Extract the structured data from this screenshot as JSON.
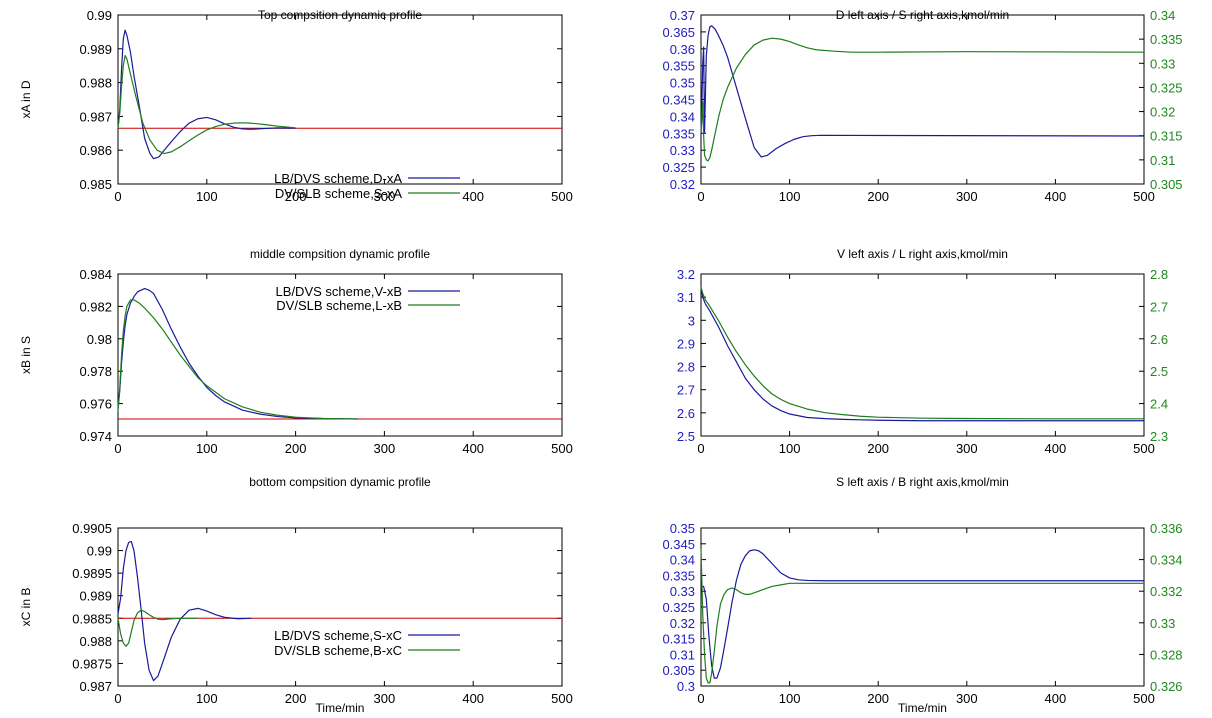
{
  "colors": {
    "blue": "#1a1a9a",
    "green": "#1e7d1e",
    "red": "#cc0000",
    "left_tick": "#2020c0",
    "right_tick": "#1e8a1e"
  },
  "chart_data": [
    {
      "type": "line",
      "title": "Top compsition dynamic profile",
      "ylabel": "xA in D",
      "xlabel": "",
      "xlim": [
        0,
        500
      ],
      "xticks": [
        "0",
        "100",
        "200",
        "300",
        "400",
        "500"
      ],
      "ylim": [
        0.985,
        0.99
      ],
      "yticks": [
        "0.985",
        "0.986",
        "0.987",
        "0.988",
        "0.989",
        "0.99"
      ],
      "setpoint": 0.98665,
      "series": [
        {
          "name": "LB/DVS scheme,D-xA",
          "color": "blue",
          "x": [
            0,
            2,
            4,
            6,
            8,
            10,
            14,
            18,
            24,
            30,
            36,
            40,
            46,
            52,
            60,
            70,
            80,
            90,
            100,
            110,
            120,
            130,
            140,
            150,
            165,
            180,
            200
          ],
          "y": [
            0.98665,
            0.9872,
            0.9884,
            0.9893,
            0.98955,
            0.9894,
            0.9889,
            0.9882,
            0.9873,
            0.98635,
            0.9859,
            0.98575,
            0.9858,
            0.986,
            0.98625,
            0.98655,
            0.9868,
            0.98693,
            0.98697,
            0.9869,
            0.98678,
            0.98668,
            0.98663,
            0.98662,
            0.98664,
            0.98666,
            0.98665
          ]
        },
        {
          "name": "DV/SLB scheme,S-xA",
          "color": "green",
          "x": [
            0,
            2,
            4,
            6,
            8,
            10,
            14,
            20,
            28,
            36,
            44,
            52,
            60,
            70,
            80,
            90,
            100,
            110,
            120,
            130,
            140,
            150,
            165,
            180,
            200
          ],
          "y": [
            0.98665,
            0.9871,
            0.9879,
            0.9885,
            0.9888,
            0.9887,
            0.98825,
            0.9876,
            0.9868,
            0.9863,
            0.986,
            0.9859,
            0.98595,
            0.9861,
            0.98628,
            0.98645,
            0.9866,
            0.9867,
            0.98677,
            0.9868,
            0.98681,
            0.9868,
            0.98676,
            0.98671,
            0.98666
          ]
        }
      ],
      "legend_position": "center"
    },
    {
      "type": "line",
      "title": "middle compsition dynamic profile",
      "ylabel": "xB in S",
      "xlabel": "",
      "xlim": [
        0,
        500
      ],
      "xticks": [
        "0",
        "100",
        "200",
        "300",
        "400",
        "500"
      ],
      "ylim": [
        0.974,
        0.984
      ],
      "yticks": [
        "0.974",
        "0.976",
        "0.978",
        "0.98",
        "0.982",
        "0.984"
      ],
      "setpoint": 0.97505,
      "series": [
        {
          "name": "LB/DVS scheme,V-xB",
          "color": "blue",
          "x": [
            0,
            2,
            4,
            6,
            8,
            10,
            14,
            18,
            22,
            26,
            30,
            35,
            40,
            50,
            60,
            70,
            80,
            90,
            100,
            110,
            120,
            140,
            160,
            180,
            200,
            230,
            270
          ],
          "y": [
            0.9757,
            0.9768,
            0.9785,
            0.9798,
            0.9808,
            0.9815,
            0.9822,
            0.9826,
            0.9829,
            0.983,
            0.9831,
            0.983,
            0.9828,
            0.9818,
            0.9806,
            0.9795,
            0.9785,
            0.9777,
            0.977,
            0.9765,
            0.9761,
            0.9756,
            0.97535,
            0.9752,
            0.97512,
            0.97508,
            0.97505
          ]
        },
        {
          "name": "DV/SLB scheme,L-xB",
          "color": "green",
          "x": [
            0,
            2,
            4,
            6,
            8,
            10,
            14,
            18,
            24,
            30,
            40,
            50,
            60,
            70,
            80,
            90,
            100,
            110,
            120,
            140,
            160,
            180,
            200,
            230,
            270
          ],
          "y": [
            0.9755,
            0.977,
            0.979,
            0.9805,
            0.9814,
            0.982,
            0.9824,
            0.9824,
            0.9822,
            0.9819,
            0.9813,
            0.9806,
            0.9798,
            0.979,
            0.9783,
            0.9776,
            0.9771,
            0.9767,
            0.9763,
            0.9758,
            0.97547,
            0.97528,
            0.97516,
            0.97508,
            0.97505
          ]
        }
      ],
      "legend_position": "top-center"
    },
    {
      "type": "line",
      "title": "bottom compsition dynamic profile",
      "ylabel": "xC in B",
      "xlabel": "Time/min",
      "xlim": [
        0,
        500
      ],
      "xticks": [
        "0",
        "100",
        "200",
        "300",
        "400",
        "500"
      ],
      "ylim": [
        0.987,
        0.9905
      ],
      "yticks": [
        "0.987",
        "0.9875",
        "0.988",
        "0.9885",
        "0.989",
        "0.9895",
        "0.99",
        "0.9905"
      ],
      "setpoint": 0.9885,
      "series": [
        {
          "name": "LB/DVS scheme,S-xC",
          "color": "blue",
          "x": [
            0,
            3,
            6,
            9,
            12,
            15,
            18,
            22,
            26,
            30,
            35,
            40,
            45,
            50,
            60,
            70,
            80,
            90,
            100,
            110,
            120,
            135,
            150
          ],
          "y": [
            0.9886,
            0.98895,
            0.9896,
            0.99,
            0.99018,
            0.9902,
            0.99,
            0.9894,
            0.9887,
            0.98795,
            0.98735,
            0.98712,
            0.98722,
            0.9875,
            0.98808,
            0.98848,
            0.98868,
            0.98872,
            0.98866,
            0.98858,
            0.98852,
            0.98849,
            0.9885
          ]
        },
        {
          "name": "DV/SLB scheme,B-xC",
          "color": "green",
          "x": [
            0,
            3,
            6,
            9,
            12,
            15,
            18,
            22,
            26,
            30,
            35,
            40,
            45,
            50,
            60,
            70,
            80,
            90
          ],
          "y": [
            0.9885,
            0.98815,
            0.98795,
            0.98788,
            0.98795,
            0.9882,
            0.98845,
            0.98862,
            0.98868,
            0.98865,
            0.98858,
            0.98852,
            0.98848,
            0.98847,
            0.98849,
            0.9885,
            0.9885,
            0.9885
          ]
        }
      ],
      "legend_position": "bottom-center"
    },
    {
      "type": "line",
      "title": "D left axis / S right axis,kmol/min",
      "ylabel": "",
      "xlabel": "",
      "xlim": [
        0,
        500
      ],
      "xticks": [
        "0",
        "100",
        "200",
        "300",
        "400",
        "500"
      ],
      "ylim": [
        0.32,
        0.37
      ],
      "yticks": [
        "0.32",
        "0.325",
        "0.33",
        "0.335",
        "0.34",
        "0.345",
        "0.35",
        "0.355",
        "0.36",
        "0.365",
        "0.37"
      ],
      "y2lim": [
        0.305,
        0.34
      ],
      "y2ticks": [
        "0.305",
        "0.31",
        "0.315",
        "0.32",
        "0.325",
        "0.33",
        "0.335",
        "0.34"
      ],
      "series": [
        {
          "name": "D",
          "axis": "left",
          "color": "blue",
          "x": [
            0,
            1,
            2,
            3,
            4,
            6,
            8,
            10,
            12,
            16,
            20,
            25,
            30,
            40,
            50,
            60,
            68,
            75,
            85,
            95,
            105,
            115,
            125,
            135,
            500
          ],
          "y": [
            0.3345,
            0.344,
            0.356,
            0.3605,
            0.335,
            0.358,
            0.364,
            0.3665,
            0.3668,
            0.3658,
            0.3638,
            0.361,
            0.3575,
            0.3485,
            0.3395,
            0.3308,
            0.328,
            0.3285,
            0.3305,
            0.332,
            0.3332,
            0.334,
            0.3343,
            0.3344,
            0.3342
          ]
        },
        {
          "name": "S",
          "axis": "right",
          "color": "green",
          "x": [
            0,
            1,
            2,
            3,
            4,
            6,
            8,
            10,
            12,
            16,
            20,
            25,
            30,
            40,
            50,
            60,
            70,
            80,
            90,
            100,
            110,
            120,
            130,
            150,
            170,
            200,
            300,
            500
          ],
          "y": [
            0.316,
            0.318,
            0.322,
            0.315,
            0.311,
            0.31,
            0.3098,
            0.3105,
            0.312,
            0.3155,
            0.319,
            0.3225,
            0.325,
            0.329,
            0.3318,
            0.3338,
            0.3348,
            0.3352,
            0.335,
            0.3345,
            0.3338,
            0.3332,
            0.3328,
            0.3325,
            0.3323,
            0.3323,
            0.3324,
            0.3323
          ]
        }
      ]
    },
    {
      "type": "line",
      "title": "V left axis / L right axis,kmol/min",
      "ylabel": "",
      "xlabel": "",
      "xlim": [
        0,
        500
      ],
      "xticks": [
        "0",
        "100",
        "200",
        "300",
        "400",
        "500"
      ],
      "ylim": [
        2.5,
        3.2
      ],
      "yticks": [
        "2.5",
        "2.6",
        "2.7",
        "2.8",
        "2.9",
        "3",
        "3.1",
        "3.2"
      ],
      "y2lim": [
        2.3,
        2.8
      ],
      "y2ticks": [
        "2.3",
        "2.4",
        "2.5",
        "2.6",
        "2.7",
        "2.8"
      ],
      "series": [
        {
          "name": "V",
          "axis": "left",
          "color": "blue",
          "x": [
            0,
            2,
            5,
            10,
            20,
            30,
            40,
            50,
            60,
            70,
            80,
            90,
            100,
            120,
            140,
            160,
            180,
            200,
            250,
            300,
            400,
            500
          ],
          "y": [
            3.14,
            3.1,
            3.07,
            3.04,
            2.97,
            2.89,
            2.82,
            2.75,
            2.7,
            2.66,
            2.63,
            2.61,
            2.595,
            2.58,
            2.575,
            2.572,
            2.57,
            2.568,
            2.566,
            2.566,
            2.566,
            2.566
          ]
        },
        {
          "name": "L",
          "axis": "right",
          "color": "green",
          "x": [
            0,
            2,
            5,
            10,
            20,
            30,
            40,
            50,
            60,
            70,
            80,
            90,
            100,
            120,
            140,
            160,
            180,
            200,
            250,
            300,
            400,
            500
          ],
          "y": [
            2.76,
            2.74,
            2.72,
            2.7,
            2.655,
            2.605,
            2.56,
            2.52,
            2.485,
            2.455,
            2.43,
            2.413,
            2.4,
            2.383,
            2.372,
            2.366,
            2.361,
            2.358,
            2.355,
            2.354,
            2.353,
            2.353
          ]
        }
      ]
    },
    {
      "type": "line",
      "title": "S left axis / B right axis,kmol/min",
      "ylabel": "",
      "xlabel": "Time/min",
      "xlim": [
        0,
        500
      ],
      "xticks": [
        "0",
        "100",
        "200",
        "300",
        "400",
        "500"
      ],
      "ylim": [
        0.3,
        0.35
      ],
      "yticks": [
        "0.3",
        "0.305",
        "0.31",
        "0.315",
        "0.32",
        "0.325",
        "0.33",
        "0.335",
        "0.34",
        "0.345",
        "0.35"
      ],
      "y2lim": [
        0.326,
        0.336
      ],
      "y2ticks": [
        "0.326",
        "0.328",
        "0.33",
        "0.332",
        "0.334",
        "0.336"
      ],
      "series": [
        {
          "name": "S",
          "axis": "left",
          "color": "blue",
          "x": [
            0,
            3,
            6,
            9,
            12,
            15,
            18,
            22,
            26,
            30,
            35,
            40,
            45,
            50,
            55,
            60,
            65,
            70,
            80,
            90,
            100,
            110,
            120,
            140,
            160,
            200,
            300,
            500
          ],
          "y": [
            0.3315,
            0.3315,
            0.3275,
            0.3155,
            0.3065,
            0.3025,
            0.3025,
            0.3058,
            0.3118,
            0.3182,
            0.3265,
            0.3335,
            0.3385,
            0.3412,
            0.3428,
            0.3431,
            0.3428,
            0.3418,
            0.3388,
            0.3358,
            0.3342,
            0.3336,
            0.3334,
            0.3333,
            0.3333,
            0.3333,
            0.3333,
            0.3333
          ]
        },
        {
          "name": "B",
          "axis": "right",
          "color": "green",
          "x": [
            0,
            2,
            4,
            6,
            8,
            10,
            12,
            15,
            18,
            22,
            26,
            30,
            35,
            40,
            45,
            50,
            55,
            60,
            70,
            80,
            90,
            100,
            110,
            130,
            160,
            200,
            300,
            500
          ],
          "y": [
            0.3347,
            0.3305,
            0.328,
            0.3265,
            0.3262,
            0.3262,
            0.3268,
            0.3282,
            0.3298,
            0.3312,
            0.3318,
            0.3321,
            0.3322,
            0.3321,
            0.3319,
            0.3318,
            0.3318,
            0.3319,
            0.3321,
            0.3323,
            0.3324,
            0.3325,
            0.3325,
            0.3325,
            0.3325,
            0.3325,
            0.3325,
            0.3325
          ]
        }
      ]
    }
  ]
}
